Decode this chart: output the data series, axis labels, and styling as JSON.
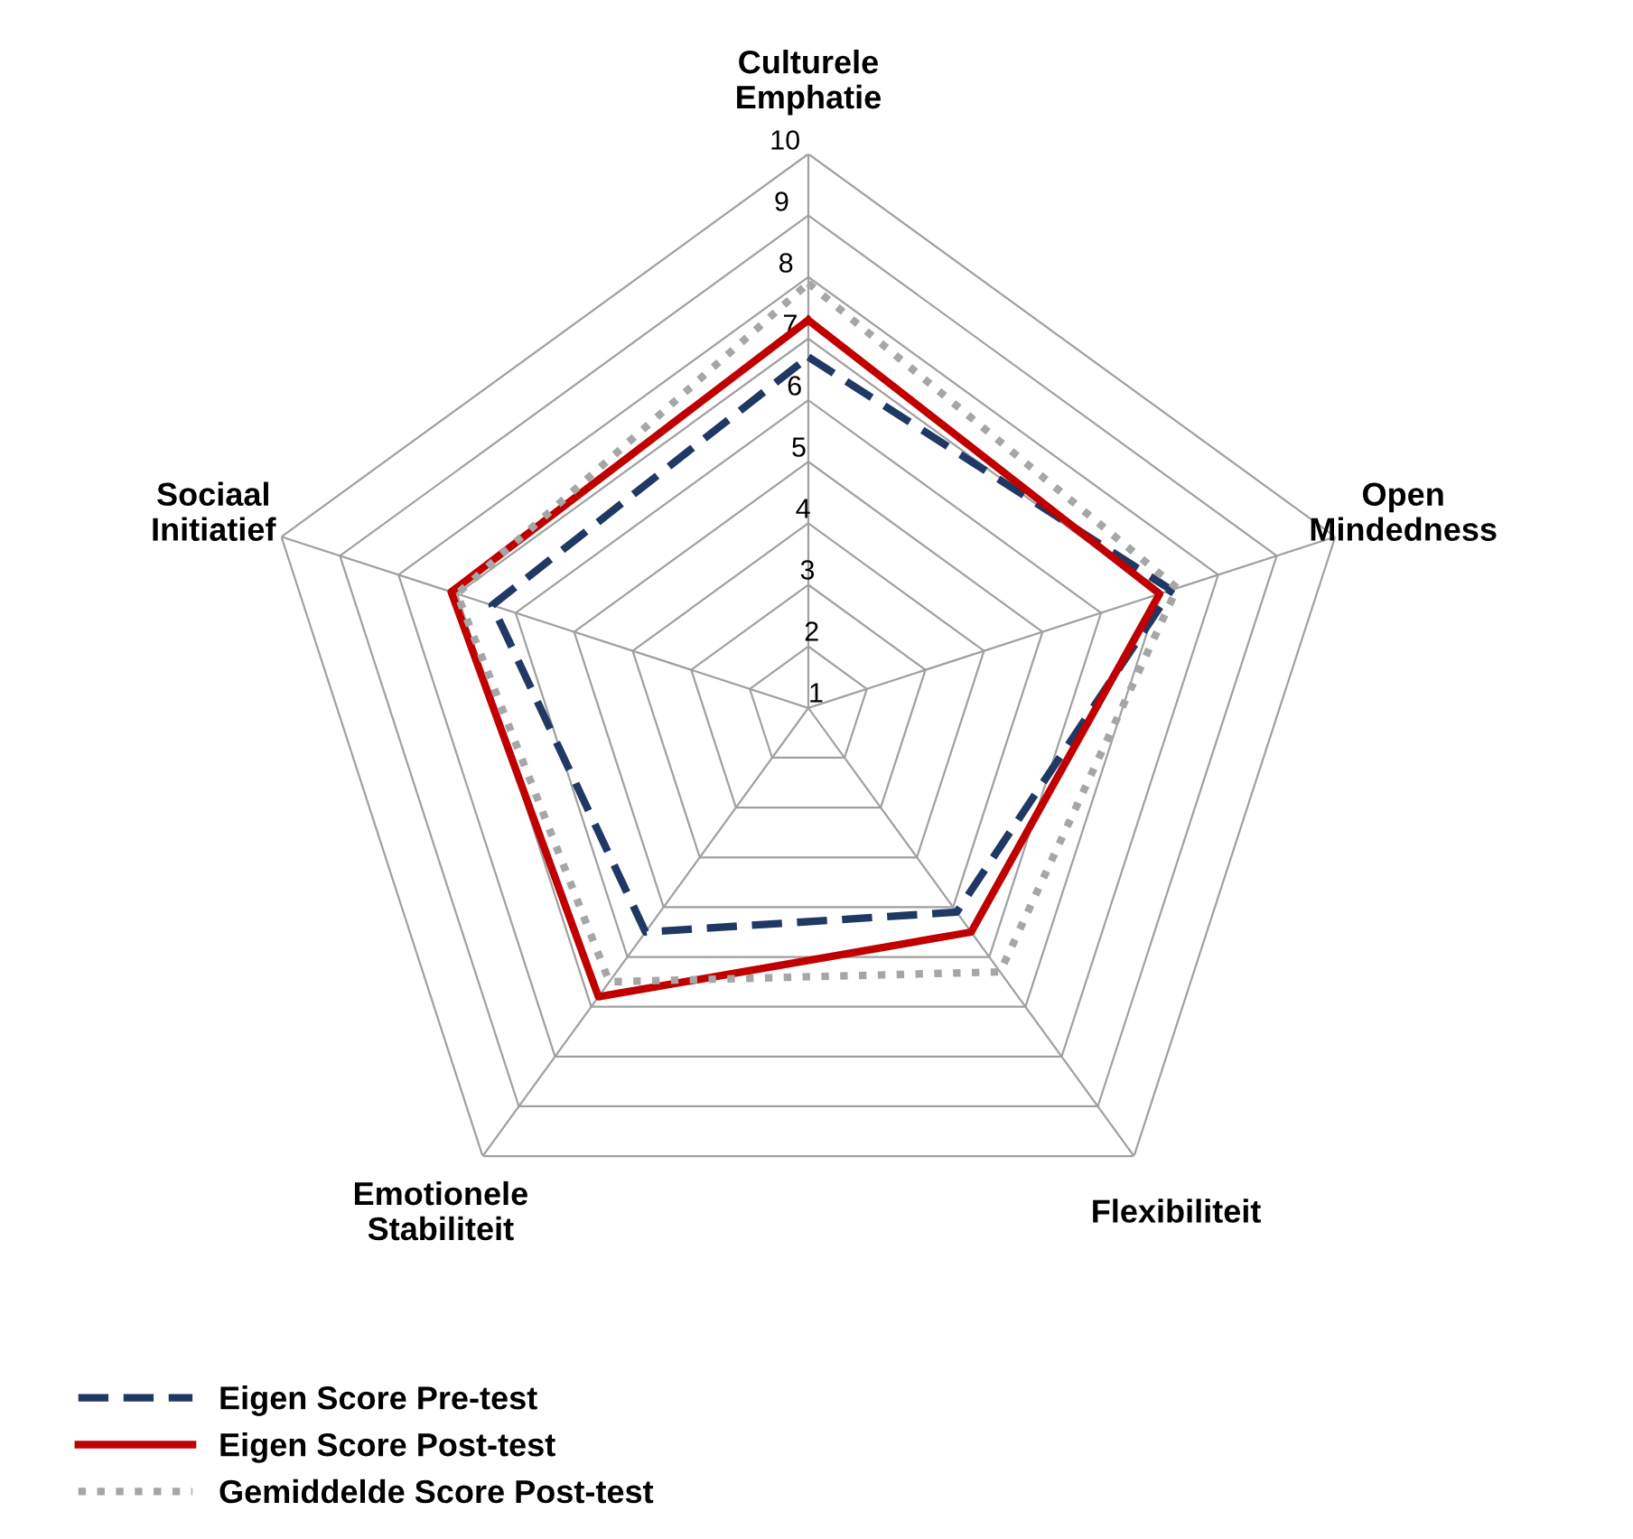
{
  "chart_data": {
    "type": "radar",
    "categories": [
      "Culturele\nEmphatie",
      "Open\nMindedness",
      "Flexibiliteit",
      "Emotionele\nStabiliteit",
      "Sociaal\nInitiatief"
    ],
    "series": [
      {
        "name": "Eigen Score Pre-test",
        "color": "#203864",
        "line_style": "dashed",
        "values": [
          6.7,
          7.2,
          5.1,
          5.5,
          6.4
        ]
      },
      {
        "name": "Eigen Score Post-test",
        "color": "#c00000",
        "line_style": "solid",
        "values": [
          7.3,
          7.0,
          5.5,
          6.8,
          7.1
        ]
      },
      {
        "name": "Gemiddelde Score Post-test",
        "color": "#a6a6a6",
        "line_style": "dotted",
        "values": [
          7.9,
          7.3,
          6.3,
          6.5,
          7.0
        ]
      }
    ],
    "ylim": [
      1,
      10
    ],
    "yticks": [
      1,
      2,
      3,
      4,
      5,
      6,
      7,
      8,
      9,
      10
    ],
    "grid": true,
    "legend": "bottom left",
    "marker": "none"
  }
}
